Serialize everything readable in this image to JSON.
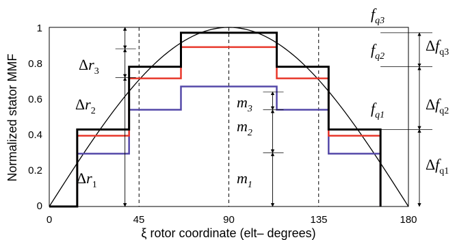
{
  "chart_data": {
    "type": "line",
    "xlabel": "ξ rotor coordinate (elt– degrees)",
    "ylabel": "Normalized stator MMF",
    "xlim": [
      0,
      180
    ],
    "ylim": [
      0,
      1
    ],
    "xticks": [
      0,
      45,
      90,
      135,
      180
    ],
    "yticks": [
      0,
      0.2,
      0.4,
      0.6,
      0.8,
      1
    ],
    "ytick_labels": [
      "0",
      "0.2",
      "0.4",
      "0.6",
      "0.8",
      "1"
    ],
    "grid": false,
    "dashed_vlines": [
      45,
      90,
      135
    ],
    "sine_curve": {
      "amplitude": 1,
      "period_deg": 360,
      "color": "#000000"
    },
    "series": [
      {
        "color": "#000000",
        "x": [
          0,
          14,
          14,
          40,
          40,
          66,
          66,
          114,
          114,
          140,
          140,
          166,
          166
        ],
        "y": [
          0,
          0,
          0.43,
          0.43,
          0.78,
          0.78,
          0.97,
          0.97,
          0.78,
          0.78,
          0.43,
          0.43,
          0
        ]
      },
      {
        "color": "#e8372a",
        "x": [
          14,
          14,
          40,
          40,
          66,
          66,
          114,
          114,
          140,
          140,
          166,
          166
        ],
        "y": [
          0,
          0.395,
          0.395,
          0.715,
          0.715,
          0.89,
          0.89,
          0.715,
          0.715,
          0.395,
          0.395,
          0
        ]
      },
      {
        "color": "#5448a8",
        "x": [
          14,
          14,
          40,
          40,
          66,
          66,
          114,
          114,
          140,
          140,
          166,
          166
        ],
        "y": [
          0,
          0.295,
          0.295,
          0.54,
          0.54,
          0.67,
          0.67,
          0.54,
          0.54,
          0.295,
          0.295,
          0
        ]
      }
    ],
    "annotations": {
      "delta_r": [
        {
          "sym": "Δ",
          "base": "r",
          "sub": "1",
          "x": 40,
          "y0": 0,
          "y1": 0.72
        },
        {
          "sym": "Δ",
          "base": "r",
          "sub": "2",
          "x": 40,
          "y0": 0.72,
          "y1": 0.88
        },
        {
          "sym": "Δ",
          "base": "r",
          "sub": "3",
          "x": 40,
          "y0": 0.88,
          "y1": 1
        }
      ],
      "m": [
        {
          "base": "m",
          "sub": "1",
          "x": 90,
          "y0": 0,
          "y1": 0.3
        },
        {
          "base": "m",
          "sub": "2",
          "x": 90,
          "y0": 0.3,
          "y1": 0.54
        },
        {
          "base": "m",
          "sub": "3",
          "x": 90,
          "y0": 0.54,
          "y1": 0.64
        }
      ],
      "f_labels": [
        {
          "base": "f",
          "sub": "q3"
        },
        {
          "base": "f",
          "sub": "q2"
        },
        {
          "base": "f",
          "sub": "q1"
        }
      ],
      "delta_f": [
        {
          "sym": "Δ",
          "base": "f",
          "sub": "q3",
          "y0": 0.78,
          "y1": 0.97
        },
        {
          "sym": "Δ",
          "base": "f",
          "sub": "q2",
          "y0": 0.43,
          "y1": 0.78
        },
        {
          "sym": "Δ",
          "base": "f",
          "sub": "q1",
          "y0": 0,
          "y1": 0.43
        }
      ]
    }
  }
}
